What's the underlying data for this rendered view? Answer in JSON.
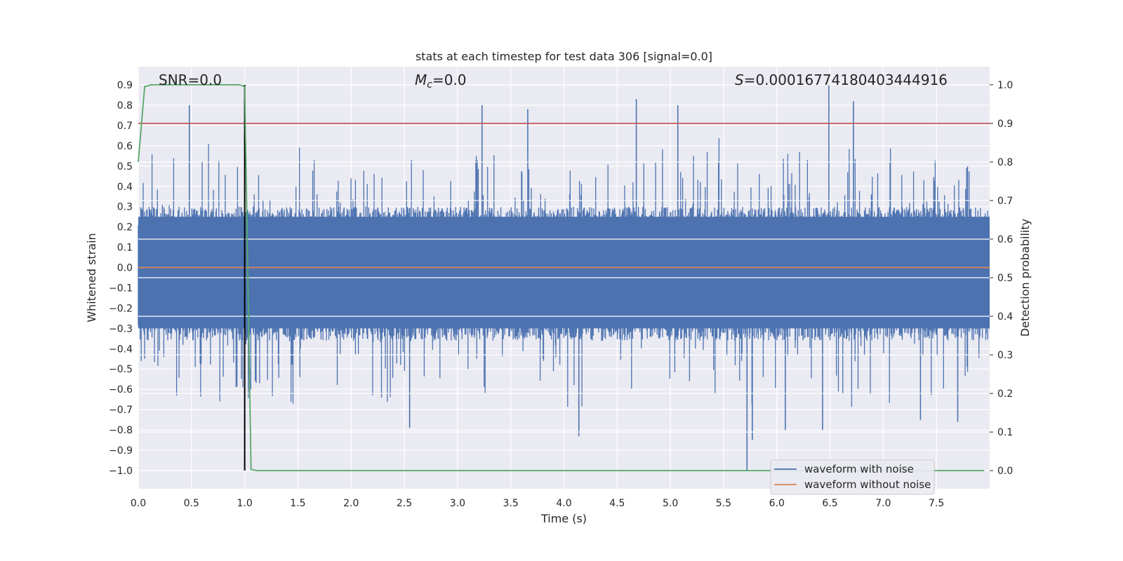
{
  "chart_data": {
    "type": "line",
    "title": "stats at each timestep for test data 306 [signal=0.0]",
    "xlabel": "Time (s)",
    "ylabel_left": "Whitened strain",
    "ylabel_right": "Detection probability",
    "xlim": [
      0.0,
      8.0
    ],
    "ylim_left": [
      -1.09,
      0.99
    ],
    "ylim_right": [
      -0.047,
      1.047
    ],
    "xticks": [
      "0.0",
      "0.5",
      "1.0",
      "1.5",
      "2.0",
      "2.5",
      "3.0",
      "3.5",
      "4.0",
      "4.5",
      "5.0",
      "5.5",
      "6.0",
      "6.5",
      "7.0",
      "7.5"
    ],
    "yticks_left": [
      "0.9",
      "0.8",
      "0.7",
      "0.6",
      "0.5",
      "0.4",
      "0.3",
      "0.2",
      "0.1",
      "0.0",
      "−0.1",
      "−0.2",
      "−0.3",
      "−0.4",
      "−0.5",
      "−0.6",
      "−0.7",
      "−0.8",
      "−0.9",
      "−1.0"
    ],
    "yticks_right": [
      "1.0",
      "0.9",
      "0.8",
      "0.7",
      "0.6",
      "0.5",
      "0.4",
      "0.3",
      "0.2",
      "0.1",
      "0.0"
    ],
    "annotations": {
      "snr": "SNR=0.0",
      "mc_symbol": "M",
      "mc_sub": "c",
      "mc_value": "=0.0",
      "s_symbol": "S",
      "s_value": "=0.00016774180403444916"
    },
    "series": [
      {
        "name": "waveform with noise",
        "color": "#4c72b0",
        "axis": "left",
        "description": "noisy whitened strain, roughly within -0.83 to 0.9 with one spike to -1.0 near t=5.72"
      },
      {
        "name": "waveform without noise",
        "color": "#dd8452",
        "axis": "left",
        "values_constant": 0.0
      },
      {
        "name": "detection probability",
        "color": "#55a868",
        "axis": "right",
        "x": [
          0.0,
          0.06,
          0.12,
          0.5,
          0.95,
          1.0,
          1.06,
          1.12,
          7.95
        ],
        "y": [
          0.8,
          0.995,
          1.0,
          1.0,
          1.0,
          0.995,
          0.003,
          0.0,
          0.0
        ]
      },
      {
        "name": "threshold",
        "color": "#c44e52",
        "axis": "right",
        "values_constant": 0.9
      },
      {
        "name": "marker",
        "color": "#000000",
        "axis": "left",
        "x": 1.0,
        "y_range": [
          -1.0,
          0.9
        ]
      }
    ],
    "legend": {
      "placement": "lower-right",
      "entries": [
        {
          "label": "waveform with noise",
          "color": "#4c72b0"
        },
        {
          "label": "waveform without noise",
          "color": "#dd8452"
        }
      ]
    },
    "colors": {
      "plot_bg": "#eaeaf2",
      "grid": "#ffffff",
      "text": "#262626"
    }
  }
}
